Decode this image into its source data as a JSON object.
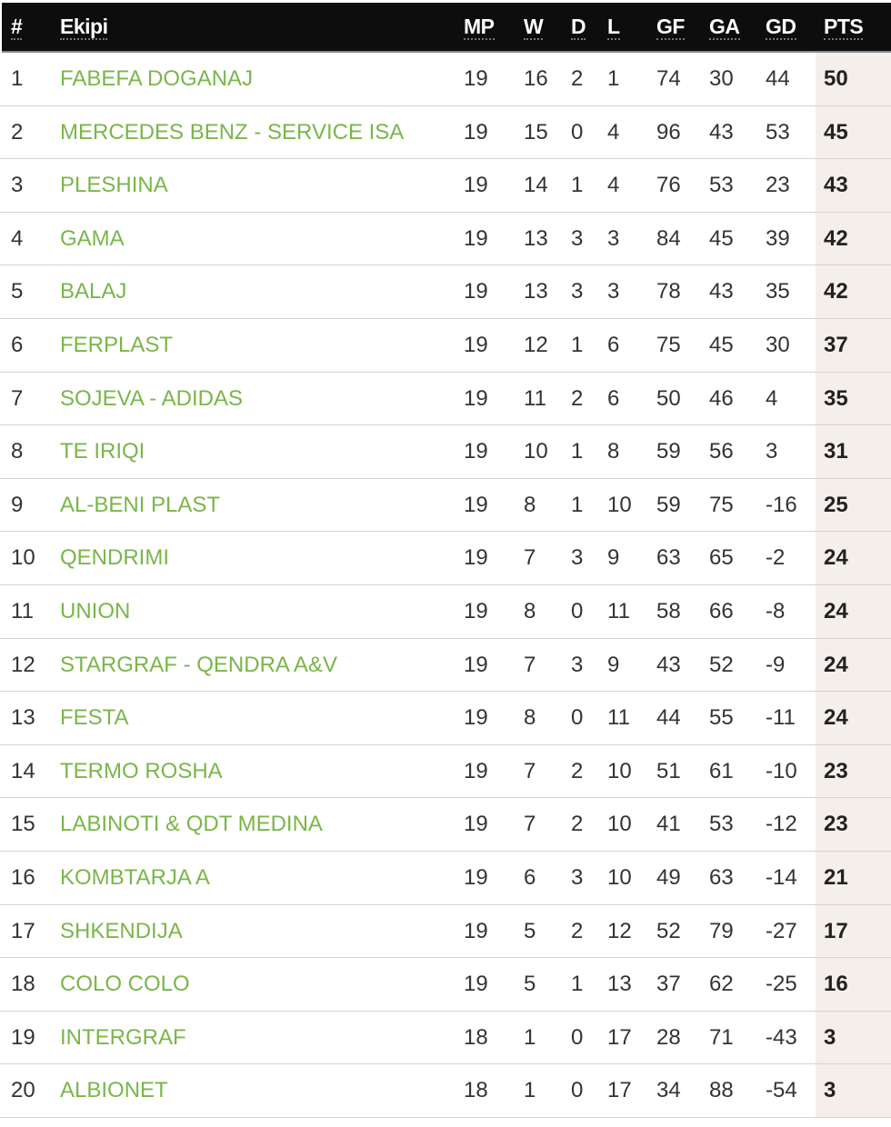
{
  "header": {
    "pos": "#",
    "team": "Ekipi",
    "mp": "MP",
    "w": "W",
    "d": "D",
    "l": "L",
    "gf": "GF",
    "ga": "GA",
    "gd": "GD",
    "pts": "PTS"
  },
  "colors": {
    "team": "#7ab648",
    "header_bg": "#0d0d0d",
    "pts_bg": "#f4efea"
  },
  "rows": [
    [
      "1",
      "FABEFA DOGANAJ",
      "19",
      "16",
      "2",
      "1",
      "74",
      "30",
      "44",
      "50"
    ],
    [
      "2",
      "MERCEDES BENZ - SERVICE ISA",
      "19",
      "15",
      "0",
      "4",
      "96",
      "43",
      "53",
      "45"
    ],
    [
      "3",
      "PLESHINA",
      "19",
      "14",
      "1",
      "4",
      "76",
      "53",
      "23",
      "43"
    ],
    [
      "4",
      "GAMA",
      "19",
      "13",
      "3",
      "3",
      "84",
      "45",
      "39",
      "42"
    ],
    [
      "5",
      "BALAJ",
      "19",
      "13",
      "3",
      "3",
      "78",
      "43",
      "35",
      "42"
    ],
    [
      "6",
      "FERPLAST",
      "19",
      "12",
      "1",
      "6",
      "75",
      "45",
      "30",
      "37"
    ],
    [
      "7",
      "SOJEVA - ADIDAS",
      "19",
      "11",
      "2",
      "6",
      "50",
      "46",
      "4",
      "35"
    ],
    [
      "8",
      "TE IRIQI",
      "19",
      "10",
      "1",
      "8",
      "59",
      "56",
      "3",
      "31"
    ],
    [
      "9",
      "AL-BENI PLAST",
      "19",
      "8",
      "1",
      "10",
      "59",
      "75",
      "-16",
      "25"
    ],
    [
      "10",
      "QENDRIMI",
      "19",
      "7",
      "3",
      "9",
      "63",
      "65",
      "-2",
      "24"
    ],
    [
      "11",
      "UNION",
      "19",
      "8",
      "0",
      "11",
      "58",
      "66",
      "-8",
      "24"
    ],
    [
      "12",
      "STARGRAF - QENDRA A&V",
      "19",
      "7",
      "3",
      "9",
      "43",
      "52",
      "-9",
      "24"
    ],
    [
      "13",
      "FESTA",
      "19",
      "8",
      "0",
      "11",
      "44",
      "55",
      "-11",
      "24"
    ],
    [
      "14",
      "TERMO ROSHA",
      "19",
      "7",
      "2",
      "10",
      "51",
      "61",
      "-10",
      "23"
    ],
    [
      "15",
      "LABINOTI & QDT MEDINA",
      "19",
      "7",
      "2",
      "10",
      "41",
      "53",
      "-12",
      "23"
    ],
    [
      "16",
      "KOMBTARJA A",
      "19",
      "6",
      "3",
      "10",
      "49",
      "63",
      "-14",
      "21"
    ],
    [
      "17",
      "SHKENDIJA",
      "19",
      "5",
      "2",
      "12",
      "52",
      "79",
      "-27",
      "17"
    ],
    [
      "18",
      "COLO COLO",
      "19",
      "5",
      "1",
      "13",
      "37",
      "62",
      "-25",
      "16"
    ],
    [
      "19",
      "INTERGRAF",
      "18",
      "1",
      "0",
      "17",
      "28",
      "71",
      "-43",
      "3"
    ],
    [
      "20",
      "ALBIONET",
      "18",
      "1",
      "0",
      "17",
      "34",
      "88",
      "-54",
      "3"
    ]
  ]
}
